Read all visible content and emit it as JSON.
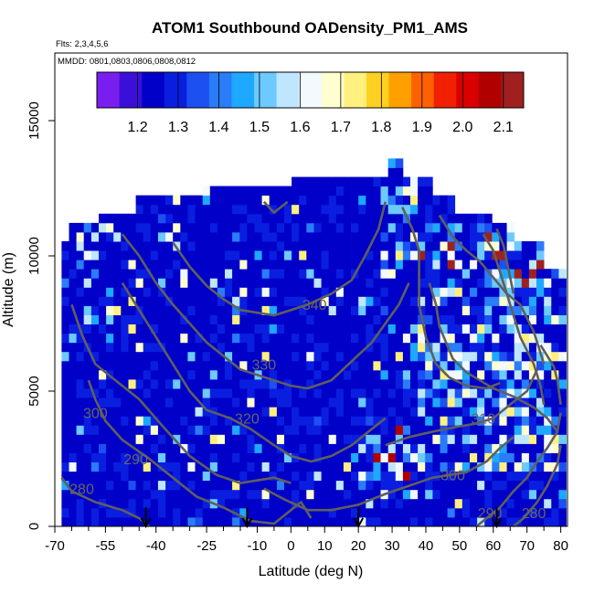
{
  "chart_data": {
    "type": "heatmap",
    "title": "ATOM1 Southbound OADensity_PM1_AMS",
    "subtitle_flights": "Flts: 2,3,4,5,6",
    "subtitle_dates": "MMDD: 0801,0803,0806,0808,0812",
    "xlabel": "Latitude (deg N)",
    "ylabel": "Altitude (m)",
    "xlim": [
      -70,
      82
    ],
    "ylim": [
      0,
      17500
    ],
    "x_ticks": [
      -70,
      -55,
      -40,
      -25,
      -10,
      0,
      10,
      20,
      30,
      40,
      50,
      60,
      70,
      80
    ],
    "x_tick_labels": [
      "-70",
      "-55",
      "-40",
      "-25",
      "-10",
      "0",
      "10",
      "20",
      "30",
      "40",
      "50",
      "60",
      "70",
      "80"
    ],
    "x_minor_ticks": [
      -65,
      -60,
      -50,
      -45,
      -35,
      -30,
      -20,
      -15,
      -5,
      5,
      15,
      25,
      35,
      45,
      55,
      65,
      75
    ],
    "y_ticks": [
      0,
      5000,
      10000,
      15000
    ],
    "y_tick_labels": [
      "0",
      "5000",
      "10000",
      "15000"
    ],
    "colorbar": {
      "min": 1.1,
      "max": 2.15,
      "ticks": [
        1.2,
        1.3,
        1.4,
        1.5,
        1.6,
        1.7,
        1.8,
        1.9,
        2.0,
        2.1
      ],
      "tick_labels": [
        "1.2",
        "1.3",
        "1.4",
        "1.5",
        "1.6",
        "1.7",
        "1.8",
        "1.9",
        "2.0",
        "2.1"
      ],
      "colors": [
        "#7a1ef0",
        "#3a10d8",
        "#0000c8",
        "#0a1ee0",
        "#1c50f0",
        "#2a7cf8",
        "#1ea8ff",
        "#6ccaff",
        "#bfe6ff",
        "#f2faff",
        "#ffffd0",
        "#fff080",
        "#ffd020",
        "#ffa000",
        "#ff6000",
        "#f02000",
        "#d80000",
        "#b00000",
        "#a02020"
      ]
    },
    "flight_leg_arrows_lat": [
      -43,
      -13,
      20,
      61
    ],
    "contours": [
      {
        "label": "280",
        "label_lat": -62,
        "label_alt": 1200,
        "points": [
          [
            -68,
            1800
          ],
          [
            -65,
            1300
          ],
          [
            -58,
            900
          ],
          [
            -50,
            600
          ],
          [
            -45,
            300
          ],
          [
            -42,
            0
          ]
        ]
      },
      {
        "label": "290",
        "label_lat": -46,
        "label_alt": 2300,
        "points": [
          [
            -60,
            5400
          ],
          [
            -58,
            4700
          ],
          [
            -55,
            3900
          ],
          [
            -50,
            3200
          ],
          [
            -42,
            2500
          ],
          [
            -35,
            1800
          ],
          [
            -28,
            1100
          ],
          [
            -20,
            700
          ],
          [
            -12,
            200
          ],
          [
            -5,
            100
          ],
          [
            0,
            600
          ],
          [
            3,
            900
          ],
          [
            6,
            300
          ]
        ]
      },
      {
        "label": "300",
        "label_lat": -58,
        "label_alt": 4000,
        "points": [
          [
            -65,
            8200
          ],
          [
            -62,
            7100
          ],
          [
            -58,
            6000
          ],
          [
            -52,
            5400
          ],
          [
            -45,
            4700
          ],
          [
            -38,
            3700
          ],
          [
            -30,
            2600
          ],
          [
            -22,
            1900
          ],
          [
            -15,
            1600
          ],
          [
            -10,
            1700
          ],
          [
            -5,
            1800
          ],
          [
            0,
            1600
          ]
        ]
      },
      {
        "label": "300",
        "label_lat": 48,
        "label_alt": 1700,
        "points": [
          [
            -8,
            1400
          ],
          [
            -2,
            1000
          ],
          [
            5,
            600
          ],
          [
            12,
            600
          ],
          [
            20,
            800
          ],
          [
            28,
            1200
          ],
          [
            35,
            1500
          ],
          [
            42,
            1800
          ],
          [
            52,
            2000
          ],
          [
            58,
            2400
          ],
          [
            62,
            2900
          ],
          [
            66,
            3300
          ]
        ]
      },
      {
        "label": "310",
        "label_lat": 57,
        "label_alt": 3800,
        "points": [
          [
            28,
            3000
          ],
          [
            35,
            3300
          ],
          [
            42,
            3500
          ],
          [
            50,
            3700
          ],
          [
            55,
            3800
          ],
          [
            60,
            4000
          ],
          [
            66,
            4600
          ],
          [
            70,
            5000
          ],
          [
            73,
            5800
          ]
        ]
      },
      {
        "label": "320",
        "label_lat": -13,
        "label_alt": 3800,
        "points": [
          [
            -50,
            9000
          ],
          [
            -45,
            8000
          ],
          [
            -40,
            7000
          ],
          [
            -35,
            6000
          ],
          [
            -30,
            5000
          ],
          [
            -25,
            4300
          ],
          [
            -18,
            4000
          ],
          [
            -12,
            3600
          ],
          [
            -5,
            3000
          ],
          [
            0,
            2600
          ],
          [
            6,
            2400
          ],
          [
            12,
            2600
          ],
          [
            18,
            3000
          ],
          [
            24,
            3600
          ],
          [
            28,
            4000
          ]
        ]
      },
      {
        "label": "330",
        "label_lat": -8,
        "label_alt": 5800,
        "points": [
          [
            -50,
            10800
          ],
          [
            -45,
            10000
          ],
          [
            -40,
            9000
          ],
          [
            -35,
            8200
          ],
          [
            -30,
            7500
          ],
          [
            -25,
            6800
          ],
          [
            -20,
            6300
          ],
          [
            -15,
            5800
          ],
          [
            -10,
            5600
          ],
          [
            -5,
            5400
          ],
          [
            0,
            5200
          ],
          [
            5,
            5100
          ],
          [
            12,
            5400
          ],
          [
            18,
            6100
          ],
          [
            24,
            6800
          ],
          [
            28,
            7500
          ],
          [
            32,
            8200
          ],
          [
            35,
            9000
          ]
        ]
      },
      {
        "label": "340",
        "label_lat": 7,
        "label_alt": 8000,
        "points": [
          [
            -35,
            10500
          ],
          [
            -30,
            9600
          ],
          [
            -25,
            8900
          ],
          [
            -20,
            8400
          ],
          [
            -15,
            8000
          ],
          [
            -10,
            7900
          ],
          [
            -5,
            7800
          ],
          [
            0,
            8000
          ],
          [
            5,
            8200
          ],
          [
            12,
            8600
          ],
          [
            18,
            9100
          ],
          [
            22,
            10000
          ],
          [
            26,
            11000
          ],
          [
            28,
            12000
          ]
        ]
      },
      {
        "label": "",
        "label_lat": 0,
        "label_alt": 0,
        "points": [
          [
            -8,
            12000
          ],
          [
            -5,
            11600
          ],
          [
            -3,
            11800
          ],
          [
            -1,
            12000
          ]
        ]
      },
      {
        "label": "",
        "label_lat": 0,
        "label_alt": 0,
        "points": [
          [
            33,
            11800
          ],
          [
            36,
            11000
          ],
          [
            38,
            10200
          ],
          [
            38,
            9200
          ],
          [
            38,
            8200
          ],
          [
            40,
            7000
          ],
          [
            43,
            6000
          ],
          [
            47,
            5500
          ],
          [
            52,
            5200
          ],
          [
            58,
            5100
          ],
          [
            62,
            5300
          ]
        ]
      },
      {
        "label": "",
        "label_lat": 0,
        "label_alt": 0,
        "points": [
          [
            44,
            11500
          ],
          [
            48,
            10700
          ],
          [
            52,
            10200
          ],
          [
            56,
            9800
          ],
          [
            60,
            9200
          ],
          [
            64,
            8600
          ],
          [
            68,
            8200
          ],
          [
            72,
            7200
          ],
          [
            75,
            6000
          ]
        ]
      },
      {
        "label": "",
        "label_lat": 0,
        "label_alt": 0,
        "points": [
          [
            57,
            10800
          ],
          [
            60,
            10200
          ],
          [
            62,
            9400
          ],
          [
            64,
            8600
          ],
          [
            66,
            7800
          ],
          [
            68,
            7000
          ],
          [
            72,
            6000
          ],
          [
            74,
            5200
          ],
          [
            75,
            4500
          ]
        ]
      },
      {
        "label": "",
        "label_lat": 0,
        "label_alt": 0,
        "points": [
          [
            61,
            11000
          ],
          [
            63,
            10400
          ],
          [
            64,
            9800
          ],
          [
            65,
            9200
          ],
          [
            66,
            8600
          ]
        ]
      },
      {
        "label": "",
        "label_lat": 0,
        "label_alt": 0,
        "points": [
          [
            41,
            9000
          ],
          [
            43,
            8200
          ],
          [
            44,
            7400
          ],
          [
            46,
            6800
          ],
          [
            48,
            6200
          ],
          [
            52,
            5700
          ],
          [
            56,
            5400
          ],
          [
            60,
            5100
          ],
          [
            66,
            4800
          ],
          [
            72,
            4400
          ],
          [
            76,
            4000
          ],
          [
            79,
            3500
          ]
        ]
      },
      {
        "label": "",
        "label_lat": 0,
        "label_alt": 0,
        "points": [
          [
            74,
            6700
          ],
          [
            76,
            6300
          ],
          [
            78,
            5900
          ],
          [
            79,
            5400
          ],
          [
            80,
            4500
          ]
        ]
      },
      {
        "label": "290",
        "label_lat": 59,
        "label_alt": 300,
        "points": [
          [
            55,
            0
          ],
          [
            58,
            300
          ],
          [
            62,
            700
          ],
          [
            66,
            1300
          ],
          [
            70,
            1800
          ],
          [
            73,
            2400
          ],
          [
            76,
            2900
          ],
          [
            79,
            3500
          ],
          [
            80,
            4200
          ]
        ]
      },
      {
        "label": "280",
        "label_lat": 72,
        "label_alt": 300,
        "points": [
          [
            66,
            0
          ],
          [
            69,
            300
          ],
          [
            73,
            900
          ],
          [
            76,
            1500
          ],
          [
            79,
            2300
          ],
          [
            80,
            3000
          ]
        ]
      }
    ]
  }
}
